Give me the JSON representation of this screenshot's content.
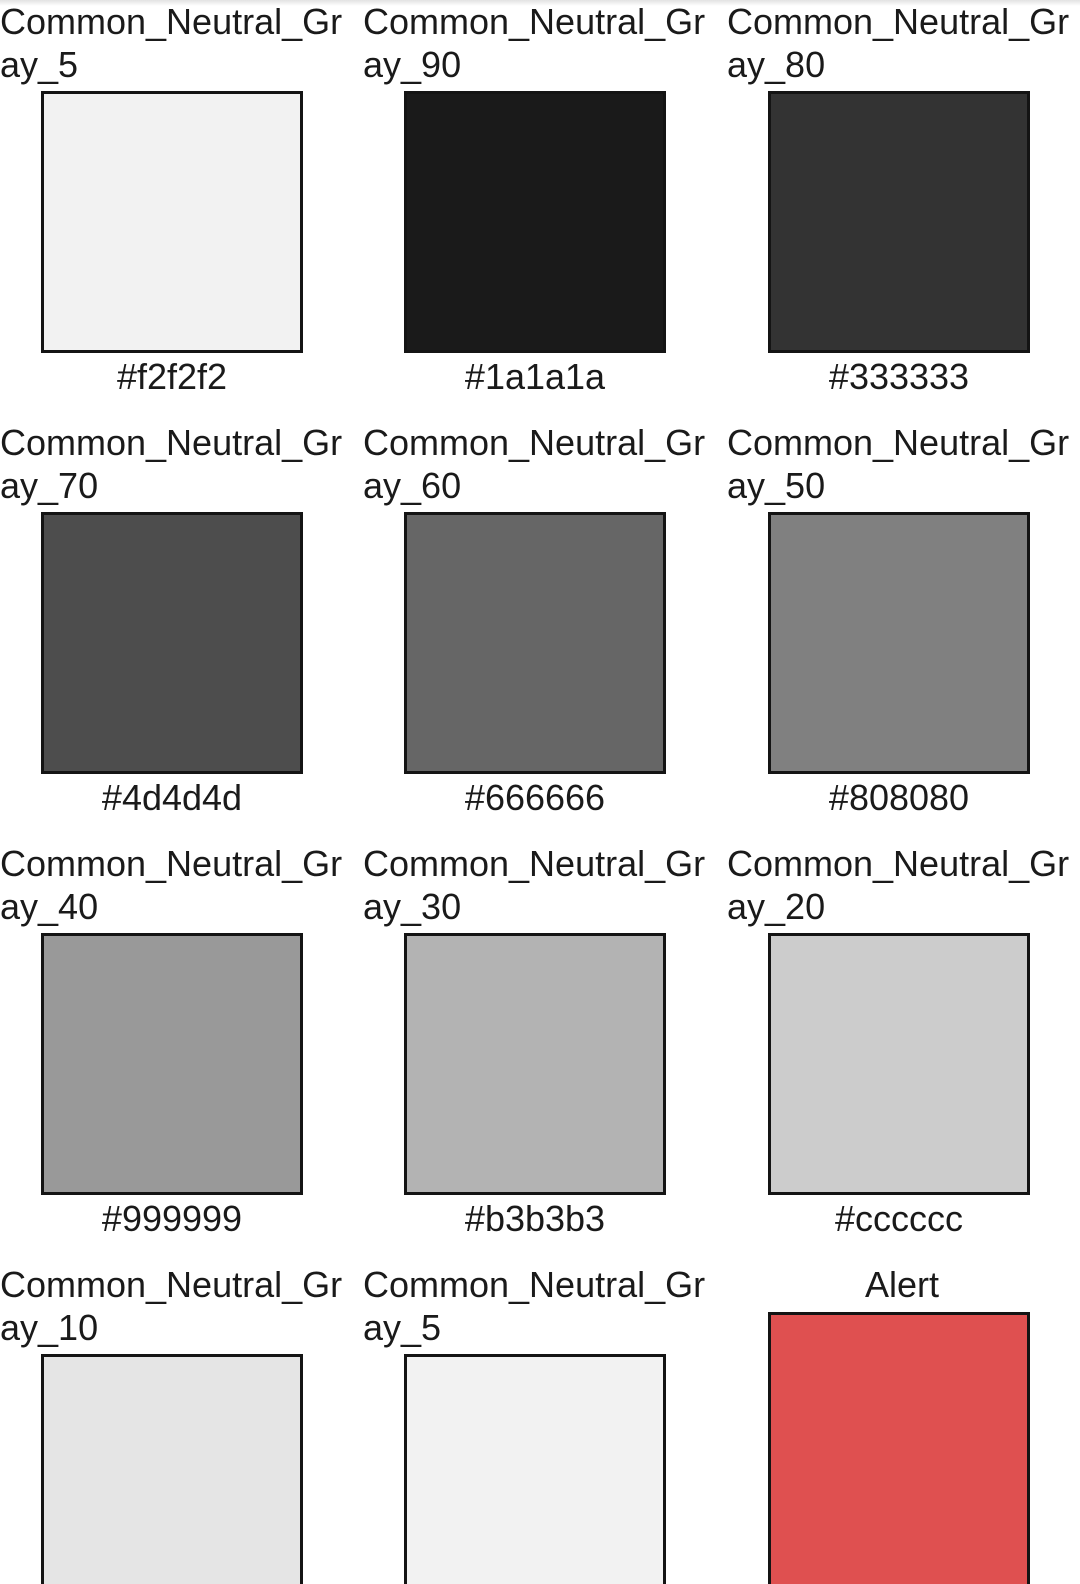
{
  "swatches": [
    {
      "name": "Common_Neutral_Gray_5",
      "hex": "#f2f2f2",
      "color": "#f2f2f2"
    },
    {
      "name": "Common_Neutral_Gray_90",
      "hex": "#1a1a1a",
      "color": "#1a1a1a"
    },
    {
      "name": "Common_Neutral_Gray_80",
      "hex": "#333333",
      "color": "#333333"
    },
    {
      "name": "Common_Neutral_Gray_70",
      "hex": "#4d4d4d",
      "color": "#4d4d4d"
    },
    {
      "name": "Common_Neutral_Gray_60",
      "hex": "#666666",
      "color": "#666666"
    },
    {
      "name": "Common_Neutral_Gray_50",
      "hex": "#808080",
      "color": "#808080"
    },
    {
      "name": "Common_Neutral_Gray_40",
      "hex": "#999999",
      "color": "#999999"
    },
    {
      "name": "Common_Neutral_Gray_30",
      "hex": "#b3b3b3",
      "color": "#b3b3b3"
    },
    {
      "name": "Common_Neutral_Gray_20",
      "hex": "#cccccc",
      "color": "#cccccc"
    },
    {
      "name": "Common_Neutral_Gray_10",
      "hex": "",
      "color": "#e5e5e5"
    },
    {
      "name": "Common_Neutral_Gray_5",
      "hex": "",
      "color": "#f2f2f2"
    },
    {
      "name": "Alert",
      "hex": "",
      "color": "#df5050"
    }
  ]
}
